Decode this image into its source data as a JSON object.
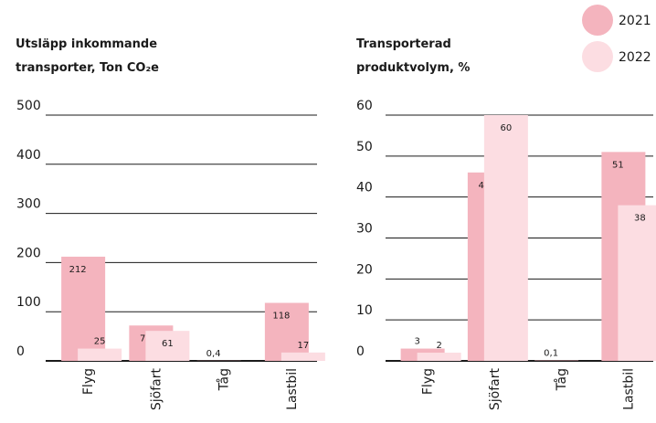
{
  "chart_data": [
    {
      "type": "bar",
      "title": [
        "Utsläpp inkommande",
        "transporter, Ton CO₂e"
      ],
      "categories": [
        "Flyg",
        "Sjöfart",
        "Tåg",
        "Lastbil"
      ],
      "series": [
        {
          "name": "2021",
          "color": "#f4b4be",
          "values": [
            212,
            72,
            0.4,
            118
          ],
          "value_labels": [
            "212",
            "72",
            "0,4",
            "118"
          ]
        },
        {
          "name": "2022",
          "color": "#fcdde2",
          "values": [
            25,
            61,
            null,
            17
          ],
          "value_labels": [
            "25",
            "61",
            null,
            "17"
          ]
        }
      ],
      "ylim": [
        0,
        500
      ],
      "yticks": [
        0,
        100,
        200,
        300,
        400,
        500
      ],
      "grid": true
    },
    {
      "type": "bar",
      "title": [
        "Transporterad",
        "produktvolym, %"
      ],
      "categories": [
        "Flyg",
        "Sjöfart",
        "Tåg",
        "Lastbil"
      ],
      "series": [
        {
          "name": "2021",
          "color": "#f4b4be",
          "values": [
            3,
            46,
            0.1,
            51
          ],
          "value_labels": [
            "3",
            "46",
            "0,1",
            "51"
          ]
        },
        {
          "name": "2022",
          "color": "#fcdde2",
          "values": [
            2,
            60,
            null,
            38
          ],
          "value_labels": [
            "2",
            "60",
            null,
            "38"
          ]
        }
      ],
      "ylim": [
        0,
        60
      ],
      "yticks": [
        0,
        10,
        20,
        30,
        40,
        50,
        60
      ],
      "grid": true
    }
  ]
}
